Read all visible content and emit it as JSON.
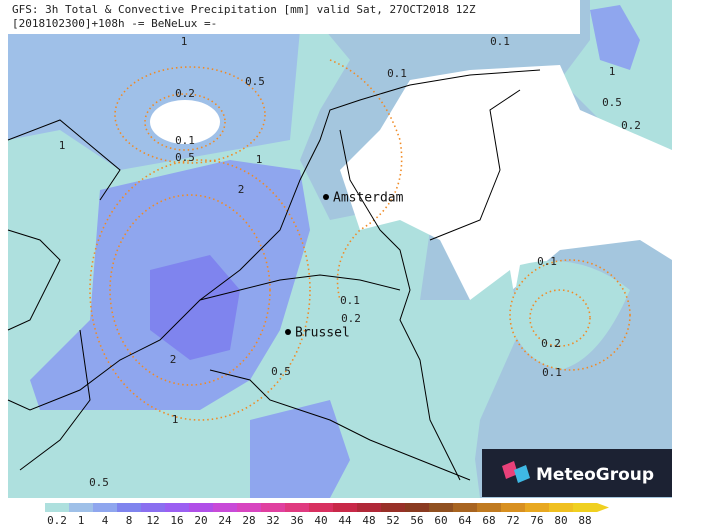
{
  "header": {
    "title": "GFS: 3h Total & Convective Precipitation [mm] valid Sat, 27OCT2018 12Z",
    "subtitle": "[2018102300]+108h -= BeNeLux =-"
  },
  "cities": [
    "Amsterdam",
    "Brussel"
  ],
  "logo": "MeteoGroup",
  "contour_labels": [
    "1",
    "0.1",
    "0.1",
    "0.5",
    "1",
    "0.2",
    "0.5",
    "0.2",
    "0.1",
    "0.5",
    "1",
    "1",
    "2",
    "0.1",
    "0.1",
    "0.2",
    "0.2",
    "2",
    "0.5",
    "0.1",
    "1",
    "0.5"
  ],
  "legend": {
    "levels": [
      "0.2",
      "1",
      "4",
      "8",
      "12",
      "16",
      "20",
      "24",
      "28",
      "32",
      "36",
      "40",
      "44",
      "48",
      "52",
      "56",
      "60",
      "64",
      "68",
      "72",
      "76",
      "80",
      "88"
    ]
  }
}
